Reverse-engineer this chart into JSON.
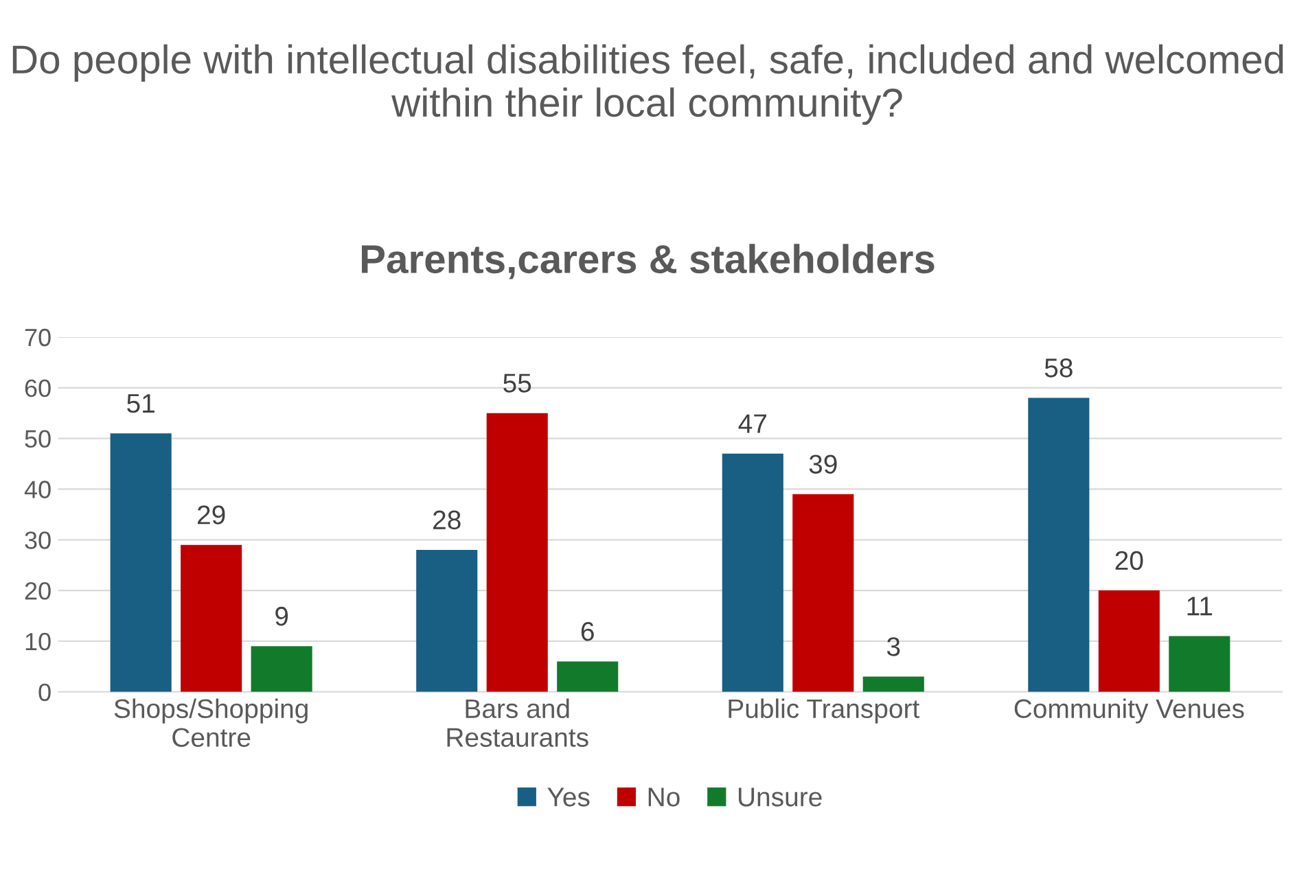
{
  "chart_data": {
    "type": "bar",
    "title": "Do people with intellectual disabilities feel, safe, included and welcomed within their local community?",
    "subtitle": "Parents,carers & stakeholders",
    "categories": [
      "Shops/Shopping\nCentre",
      "Bars and\nRestaurants",
      "Public Transport",
      "Community Venues"
    ],
    "series": [
      {
        "name": "Yes",
        "color": "#195e83",
        "values": [
          51,
          28,
          47,
          58
        ]
      },
      {
        "name": "No",
        "color": "#c00000",
        "values": [
          29,
          55,
          39,
          20
        ]
      },
      {
        "name": "Unsure",
        "color": "#127a2b",
        "values": [
          9,
          6,
          3,
          11
        ]
      }
    ],
    "ylim": [
      0,
      70
    ],
    "yticks": [
      0,
      10,
      20,
      30,
      40,
      50,
      60,
      70
    ],
    "grid": "y",
    "legend": "bottom",
    "data_labels": true
  }
}
